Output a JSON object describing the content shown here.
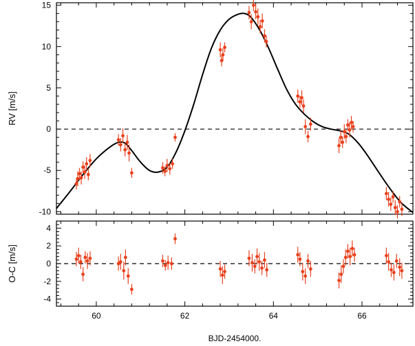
{
  "chart_data": [
    {
      "type": "scatter",
      "title": "",
      "xlabel": "",
      "ylabel": "RV [m/s]",
      "xlim": [
        59.1,
        67.15
      ],
      "ylim": [
        -10.3,
        15.3
      ],
      "yticks": [
        -10,
        -5,
        0,
        5,
        10,
        15
      ],
      "xticks": [
        60,
        62,
        64,
        66
      ],
      "show_xtick_labels": false,
      "zero_line": true,
      "colors": {
        "points": "#e8401c",
        "model": "#000000",
        "zero": "#000000"
      },
      "model": {
        "x": [
          59.1,
          59.4,
          59.7,
          60.0,
          60.3,
          60.5,
          60.65,
          60.8,
          61.0,
          61.2,
          61.4,
          61.6,
          61.8,
          62.0,
          62.2,
          62.4,
          62.6,
          62.8,
          63.0,
          63.2,
          63.35,
          63.5,
          63.7,
          63.9,
          64.1,
          64.3,
          64.5,
          64.7,
          64.9,
          65.1,
          65.3,
          65.5,
          65.7,
          65.9,
          66.1,
          66.3,
          66.5,
          66.7,
          66.9,
          67.15
        ],
        "y": [
          -9.6,
          -7.6,
          -5.5,
          -3.6,
          -2.2,
          -1.6,
          -1.7,
          -2.6,
          -4.0,
          -5.0,
          -5.2,
          -4.6,
          -2.8,
          -0.2,
          3.0,
          6.6,
          9.8,
          12.0,
          13.3,
          13.9,
          14.0,
          13.5,
          11.9,
          9.7,
          7.2,
          4.8,
          3.0,
          1.8,
          0.9,
          0.3,
          0.0,
          -0.2,
          -0.6,
          -1.6,
          -3.0,
          -4.6,
          -6.2,
          -7.7,
          -9.0,
          -10.1
        ]
      },
      "points": {
        "x": [
          59.55,
          59.58,
          59.62,
          59.66,
          59.7,
          59.74,
          59.78,
          59.82,
          59.86,
          60.5,
          60.55,
          60.6,
          60.65,
          60.7,
          60.74,
          60.8,
          61.5,
          61.55,
          61.6,
          61.66,
          61.72,
          61.78,
          62.8,
          62.83,
          62.86,
          62.9,
          63.45,
          63.5,
          63.55,
          63.6,
          63.65,
          63.7,
          63.75,
          63.8,
          63.84,
          64.55,
          64.6,
          64.64,
          64.68,
          64.72,
          64.78,
          64.84,
          65.48,
          65.52,
          65.56,
          65.6,
          65.64,
          65.68,
          65.72,
          65.76,
          65.8,
          66.55,
          66.6,
          66.65,
          66.7,
          66.75,
          66.8,
          66.85,
          66.9
        ],
        "y": [
          -6.6,
          -6.0,
          -5.4,
          -5.9,
          -4.6,
          -5.2,
          -4.2,
          -5.5,
          -3.8,
          -1.3,
          -1.9,
          -0.8,
          -2.5,
          -1.6,
          -2.9,
          -5.3,
          -4.7,
          -5.1,
          -4.4,
          -4.8,
          -4.2,
          -1.0,
          9.6,
          8.3,
          9.0,
          9.9,
          14.1,
          13.0,
          15.0,
          14.2,
          13.6,
          12.4,
          13.1,
          11.3,
          10.6,
          4.0,
          3.3,
          3.8,
          2.8,
          0.3,
          -0.9,
          0.6,
          -2.0,
          -1.0,
          -1.6,
          -0.3,
          -0.9,
          0.5,
          -0.1,
          0.8,
          0.3,
          -7.8,
          -8.5,
          -9.1,
          -8.2,
          -9.5,
          -10.0,
          -8.8,
          -9.7
        ],
        "err": [
          0.7,
          0.9,
          0.7,
          0.8,
          0.7,
          0.8,
          0.8,
          0.7,
          0.8,
          0.7,
          0.8,
          0.9,
          0.8,
          0.9,
          1.0,
          0.6,
          0.7,
          0.6,
          0.8,
          0.7,
          0.6,
          0.5,
          0.9,
          0.7,
          0.8,
          0.6,
          0.8,
          0.9,
          0.7,
          0.9,
          1.0,
          0.8,
          0.9,
          0.8,
          0.7,
          0.8,
          0.7,
          0.9,
          0.8,
          0.9,
          0.7,
          0.8,
          0.9,
          0.8,
          0.7,
          0.9,
          0.8,
          0.7,
          0.9,
          0.8,
          0.7,
          0.8,
          0.9,
          0.8,
          0.7,
          0.9,
          0.8,
          0.7,
          0.8
        ]
      }
    },
    {
      "type": "scatter",
      "title": "",
      "xlabel": "BJD-2454000.",
      "ylabel": "O-C [m/s]",
      "xlim": [
        59.1,
        67.15
      ],
      "ylim": [
        -4.8,
        4.8
      ],
      "yticks": [
        -4,
        -2,
        0,
        2,
        4
      ],
      "xticks": [
        60,
        62,
        64,
        66
      ],
      "show_xtick_labels": true,
      "zero_line": true,
      "colors": {
        "points": "#e8401c",
        "zero": "#000000"
      },
      "points": {
        "x": [
          59.55,
          59.6,
          59.65,
          59.7,
          59.75,
          59.8,
          59.86,
          60.5,
          60.55,
          60.62,
          60.66,
          60.72,
          60.8,
          61.5,
          61.56,
          61.62,
          61.7,
          61.78,
          62.8,
          62.85,
          62.9,
          63.45,
          63.52,
          63.58,
          63.63,
          63.68,
          63.74,
          63.8,
          63.85,
          64.55,
          64.6,
          64.66,
          64.72,
          64.78,
          64.84,
          65.48,
          65.53,
          65.58,
          65.63,
          65.68,
          65.73,
          65.78,
          65.83,
          66.55,
          66.6,
          66.66,
          66.72,
          66.78,
          66.85,
          66.9
        ],
        "y": [
          0.5,
          0.9,
          0.2,
          -1.2,
          0.7,
          0.3,
          0.6,
          0.0,
          0.2,
          -0.8,
          0.7,
          -1.4,
          -2.9,
          0.3,
          -0.2,
          0.1,
          0.0,
          2.8,
          -0.6,
          -1.3,
          -0.9,
          0.6,
          0.1,
          -0.3,
          0.8,
          0.2,
          -0.5,
          0.4,
          -0.7,
          1.0,
          0.5,
          -0.9,
          -1.4,
          0.3,
          -0.6,
          -1.9,
          -1.2,
          -0.3,
          0.7,
          1.4,
          0.8,
          1.7,
          1.0,
          0.9,
          0.2,
          -0.7,
          -1.0,
          0.3,
          -0.4,
          -0.8
        ],
        "err": [
          0.8,
          0.9,
          0.8,
          0.8,
          0.7,
          0.9,
          0.8,
          0.8,
          0.9,
          1.0,
          0.9,
          0.9,
          0.6,
          0.7,
          0.6,
          0.8,
          0.7,
          0.6,
          0.9,
          1.0,
          0.8,
          0.9,
          1.0,
          0.8,
          0.9,
          1.0,
          0.8,
          0.9,
          0.8,
          0.9,
          0.8,
          1.0,
          0.9,
          0.8,
          0.9,
          0.9,
          1.0,
          0.8,
          0.9,
          0.8,
          1.0,
          0.9,
          0.8,
          0.9,
          1.0,
          0.8,
          0.9,
          0.8,
          1.0,
          0.9
        ]
      }
    }
  ]
}
